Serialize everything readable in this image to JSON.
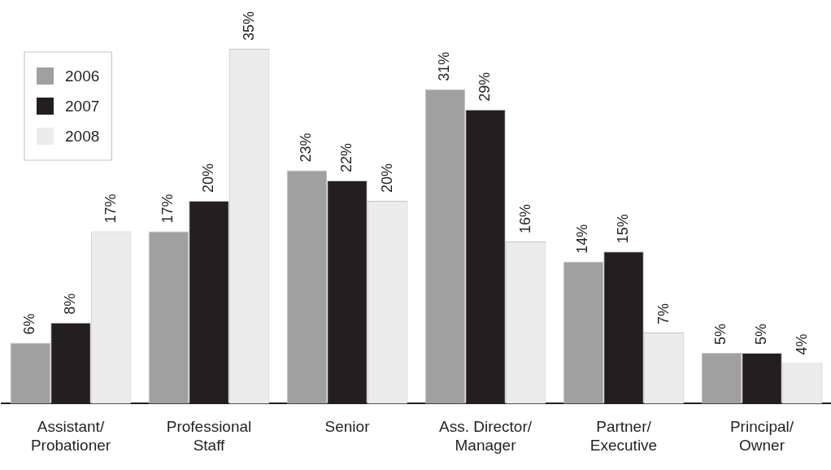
{
  "chart_data": {
    "type": "bar",
    "categories": [
      "Assistant/\nProbationer",
      "Professional\nStaff",
      "Senior",
      "Ass. Director/\nManager",
      "Partner/\nExecutive",
      "Principal/\nOwner"
    ],
    "series": [
      {
        "name": "2006",
        "color": "#a0a0a0",
        "values": [
          6,
          17,
          23,
          31,
          14,
          5
        ],
        "value_labels": [
          "6%",
          "17%",
          "23%",
          "31%",
          "14%",
          "5%"
        ]
      },
      {
        "name": "2007",
        "color": "#231f20",
        "values": [
          8,
          20,
          22,
          29,
          15,
          5
        ],
        "value_labels": [
          "8%",
          "20%",
          "22%",
          "29%",
          "15%",
          "5%"
        ]
      },
      {
        "name": "2008",
        "color": "#ececec",
        "values": [
          17,
          35,
          20,
          16,
          7,
          4
        ],
        "value_labels": [
          "17%",
          "35%",
          "20%",
          "16%",
          "7%",
          "4%"
        ]
      }
    ],
    "legend": "top left",
    "grid": false,
    "tick_labels": "x"
  }
}
